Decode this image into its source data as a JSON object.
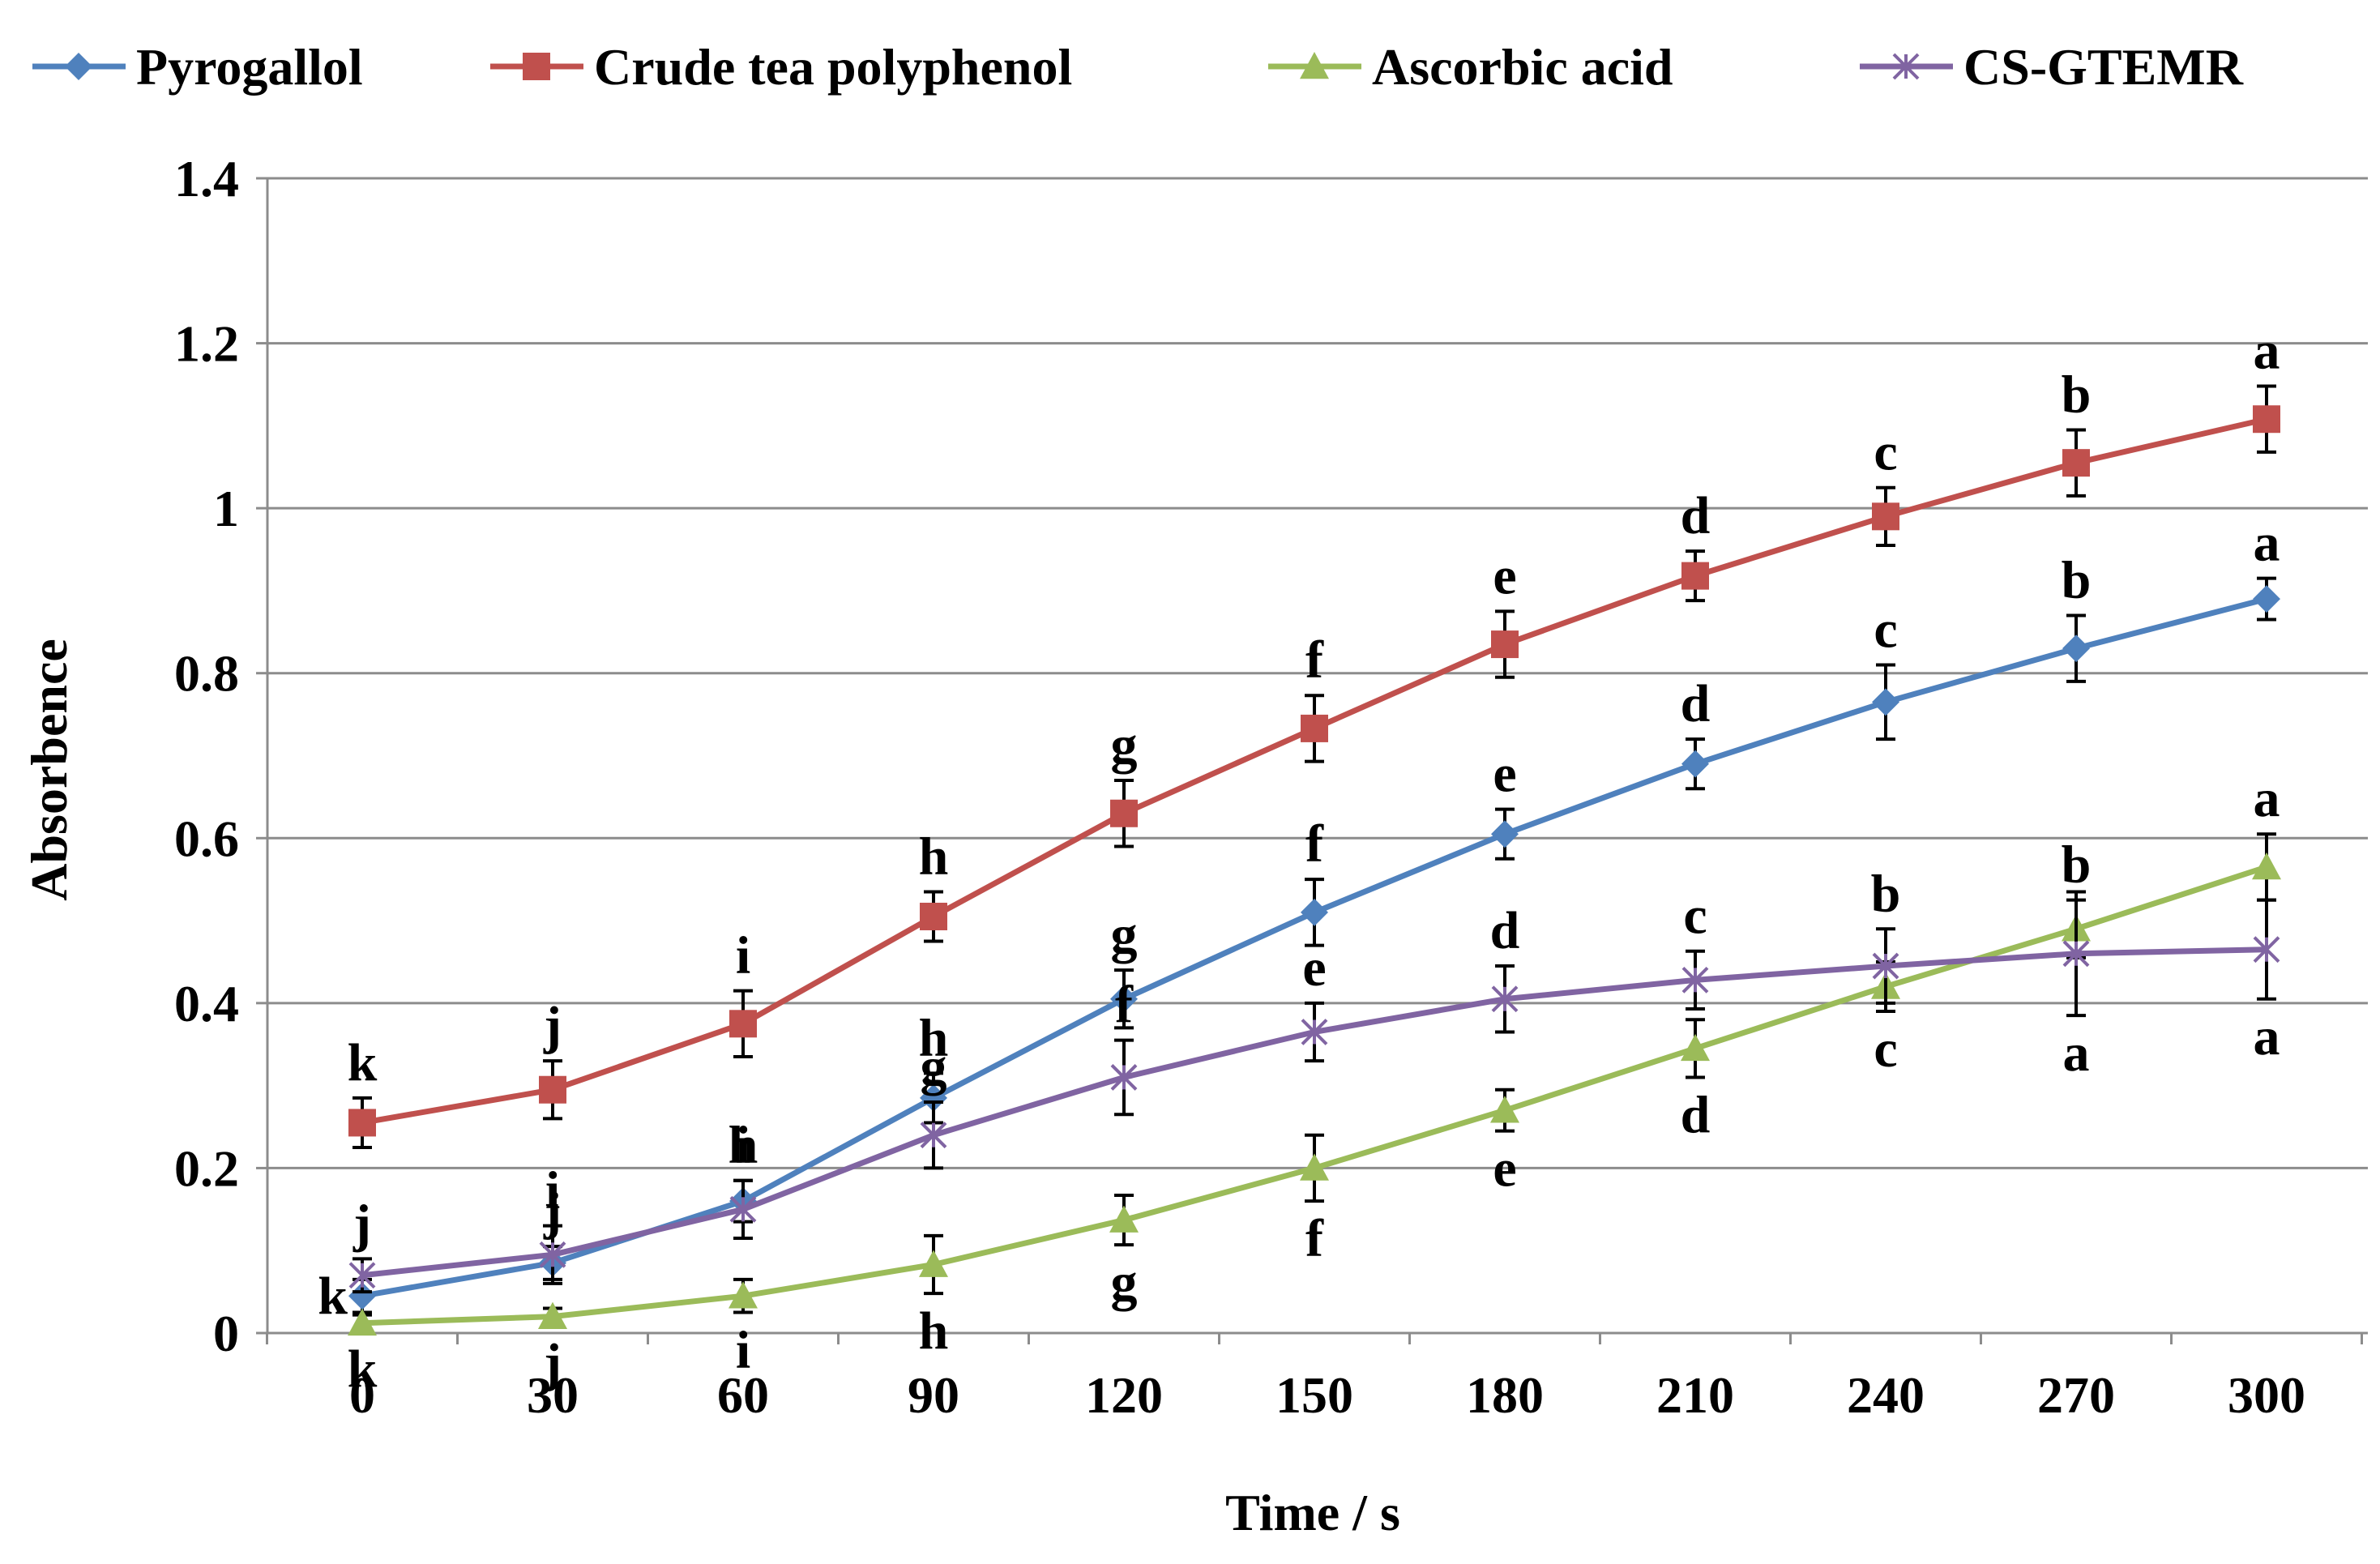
{
  "chart_data": {
    "type": "line",
    "title": "",
    "xlabel": "Time / s",
    "ylabel": "Absorbence",
    "x": [
      0,
      30,
      60,
      90,
      120,
      150,
      180,
      210,
      240,
      270,
      300
    ],
    "x_tick_labels": [
      "0",
      "30",
      "60",
      "90",
      "120",
      "150",
      "180",
      "210",
      "240",
      "270",
      "300"
    ],
    "ylim": [
      0,
      1.4
    ],
    "y_ticks": [
      0,
      0.2,
      0.4,
      0.6,
      0.8,
      1.0,
      1.2,
      1.4
    ],
    "y_tick_labels": [
      "0",
      "0.2",
      "0.4",
      "0.6",
      "0.8",
      "1",
      "1.2",
      "1.4"
    ],
    "grid": "horizontal",
    "legend_position": "top",
    "series": [
      {
        "name": "Pyrogallol",
        "color": "#4f81bd",
        "marker": "diamond",
        "values": [
          0.045,
          0.085,
          0.16,
          0.285,
          0.405,
          0.51,
          0.605,
          0.69,
          0.765,
          0.83,
          0.89
        ],
        "errors": [
          0.02,
          0.02,
          0.025,
          0.03,
          0.035,
          0.04,
          0.03,
          0.03,
          0.045,
          0.04,
          0.025
        ],
        "letters": [
          "k",
          "j",
          "i",
          "h",
          "g",
          "f",
          "e",
          "d",
          "c",
          "b",
          "a"
        ],
        "letter_side": [
          "left",
          "above",
          "above",
          "above",
          "above",
          "above",
          "above",
          "above",
          "above",
          "above",
          "above"
        ]
      },
      {
        "name": "Crude tea polyphenol",
        "color": "#c0504d",
        "marker": "square",
        "values": [
          0.255,
          0.295,
          0.375,
          0.505,
          0.63,
          0.733,
          0.835,
          0.918,
          0.99,
          1.055,
          1.108
        ],
        "errors": [
          0.03,
          0.035,
          0.04,
          0.03,
          0.04,
          0.04,
          0.04,
          0.03,
          0.035,
          0.04,
          0.04
        ],
        "letters": [
          "k",
          "j",
          "i",
          "h",
          "g",
          "f",
          "e",
          "d",
          "c",
          "b",
          "a"
        ],
        "letter_side": [
          "above",
          "above",
          "above",
          "above",
          "above",
          "above",
          "above",
          "above",
          "above",
          "above",
          "above"
        ]
      },
      {
        "name": "Ascorbic acid",
        "color": "#9bbb59",
        "marker": "triangle",
        "values": [
          0.012,
          0.02,
          0.045,
          0.083,
          0.137,
          0.2,
          0.27,
          0.345,
          0.42,
          0.49,
          0.565
        ],
        "errors": [
          0.01,
          0.01,
          0.02,
          0.035,
          0.03,
          0.04,
          0.025,
          0.035,
          0.03,
          0.035,
          0.04
        ],
        "letters": [
          "k",
          "j",
          "i",
          "h",
          "g",
          "f",
          "e",
          "d",
          "c",
          "b",
          "a"
        ],
        "letter_side": [
          "below",
          "below",
          "below",
          "below",
          "below",
          "below",
          "below",
          "below",
          "below",
          "above",
          "above"
        ]
      },
      {
        "name": "CS-GTEMR",
        "color": "#8064a2",
        "marker": "x",
        "values": [
          0.07,
          0.095,
          0.15,
          0.24,
          0.31,
          0.365,
          0.405,
          0.428,
          0.445,
          0.46,
          0.465
        ],
        "errors": [
          0.02,
          0.035,
          0.035,
          0.04,
          0.045,
          0.035,
          0.04,
          0.035,
          0.045,
          0.075,
          0.06
        ],
        "letters": [
          "j",
          "i",
          "h",
          "g",
          "f",
          "e",
          "d",
          "c",
          "b",
          "a",
          "a"
        ],
        "letter_side": [
          "above",
          "above",
          "above",
          "above",
          "above",
          "above",
          "above",
          "above",
          "above",
          "below",
          "below"
        ]
      }
    ]
  }
}
